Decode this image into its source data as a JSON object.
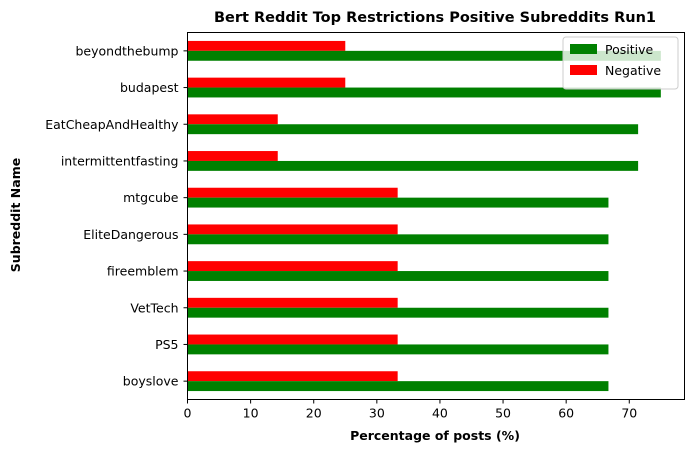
{
  "chart_data": {
    "type": "bar",
    "orientation": "horizontal",
    "title": "Bert Reddit Top Restrictions Positive Subreddits Run1",
    "xlabel": "Percentage of posts (%)",
    "ylabel": "Subreddit Name",
    "categories": [
      "beyondthebump",
      "budapest",
      "EatCheapAndHealthy",
      "intermittentfasting",
      "mtgcube",
      "EliteDangerous",
      "fireemblem",
      "VetTech",
      "PS5",
      "boyslove"
    ],
    "series": [
      {
        "name": "Positive",
        "color": "#008000",
        "values": [
          75,
          75,
          71.4,
          71.4,
          66.7,
          66.7,
          66.7,
          66.7,
          66.7,
          66.7
        ]
      },
      {
        "name": "Negative",
        "color": "#ff0000",
        "values": [
          25,
          25,
          14.3,
          14.3,
          33.3,
          33.3,
          33.3,
          33.3,
          33.3,
          33.3
        ]
      }
    ],
    "xlim": [
      0,
      78.75
    ],
    "xticks": [
      0,
      10,
      20,
      30,
      40,
      50,
      60,
      70
    ],
    "legend_position": "top-right",
    "grid": false
  }
}
